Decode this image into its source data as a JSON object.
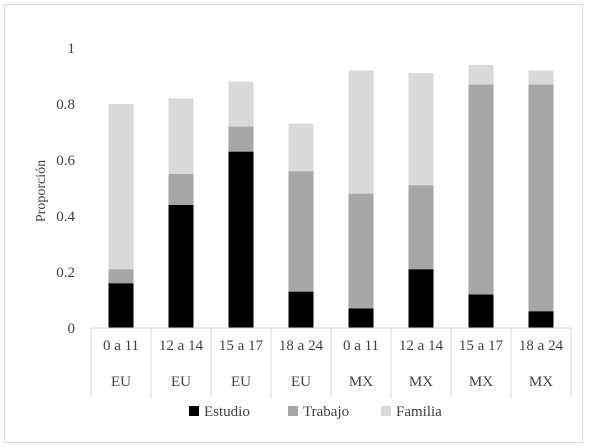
{
  "chart_data": {
    "type": "bar",
    "stacked": true,
    "ylabel": "Proporción",
    "xlabel": "",
    "ylim": [
      0,
      1
    ],
    "yticks": [
      "0",
      "0.2",
      "0.4",
      "0.6",
      "0.8",
      "1"
    ],
    "ytick_values": [
      0,
      0.2,
      0.4,
      0.6,
      0.8,
      1
    ],
    "categories": [
      "0 a 11",
      "12 a 14",
      "15 a 17",
      "18 a 24",
      "0 a 11",
      "12 a 14",
      "15 a 17",
      "18 a 24"
    ],
    "groups": [
      "EU",
      "EU",
      "EU",
      "EU",
      "MX",
      "MX",
      "MX",
      "MX"
    ],
    "series": [
      {
        "name": "Estudio",
        "color": "#000000",
        "values": [
          0.16,
          0.44,
          0.63,
          0.13,
          0.07,
          0.21,
          0.12,
          0.06
        ]
      },
      {
        "name": "Trabajo",
        "color": "#a6a6a6",
        "values": [
          0.05,
          0.11,
          0.09,
          0.43,
          0.41,
          0.3,
          0.75,
          0.81
        ]
      },
      {
        "name": "Familia",
        "color": "#d9d9d9",
        "values": [
          0.59,
          0.27,
          0.16,
          0.17,
          0.44,
          0.4,
          0.07,
          0.05
        ]
      }
    ],
    "grid": false,
    "legend_position": "bottom"
  }
}
